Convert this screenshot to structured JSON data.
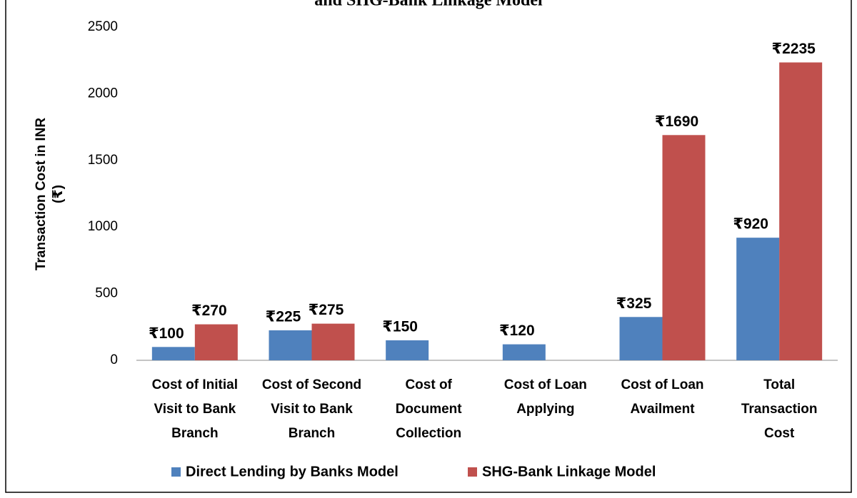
{
  "chart_data": {
    "type": "bar",
    "title": "and SHG-Bank Linkage Model",
    "ylabel": [
      "Transaction Cost in INR",
      "(₹)"
    ],
    "categories": [
      [
        "Cost of Initial",
        "Visit to Bank",
        "Branch"
      ],
      [
        "Cost of Second",
        "Visit to Bank",
        "Branch"
      ],
      [
        "Cost of",
        "Document",
        "Collection"
      ],
      [
        "Cost of Loan",
        "Applying"
      ],
      [
        "Cost of Loan",
        "Availment"
      ],
      [
        "Total",
        "Transaction",
        "Cost"
      ]
    ],
    "series": [
      {
        "name": "Direct Lending by Banks Model",
        "color": "#4f81bd",
        "values": [
          100,
          225,
          150,
          120,
          325,
          920
        ],
        "value_labels": [
          "₹100",
          "₹225",
          "₹150",
          "₹120",
          "₹325",
          "₹920"
        ]
      },
      {
        "name": "SHG-Bank Linkage Model",
        "color": "#c0504d",
        "values": [
          270,
          275,
          null,
          null,
          1690,
          2235
        ],
        "value_labels": [
          "₹270",
          "₹275",
          null,
          null,
          "₹1690",
          "₹2235"
        ]
      }
    ],
    "ylim": [
      0,
      2500
    ],
    "yticks": [
      0,
      500,
      1000,
      1500,
      2000,
      2500
    ],
    "grid": false,
    "legend": "bottom"
  }
}
